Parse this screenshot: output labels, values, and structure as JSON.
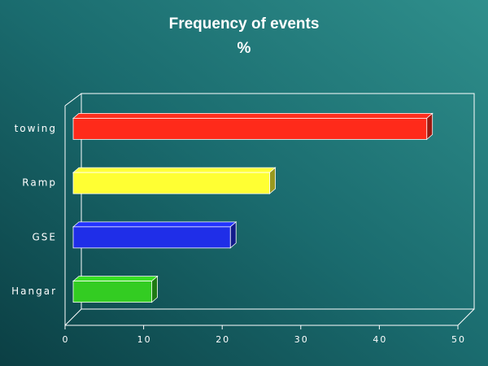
{
  "chart_data": {
    "type": "bar",
    "orientation": "horizontal",
    "title": "Frequency of events",
    "subtitle": "%",
    "categories": [
      "towing",
      "Ramp",
      "GSE",
      "Hangar"
    ],
    "values": [
      45,
      25,
      20,
      10
    ],
    "colors": [
      "#ff2a1a",
      "#ffff33",
      "#1f2ee8",
      "#33cc22"
    ],
    "xlim": [
      0,
      50
    ],
    "xticks": [
      0,
      10,
      20,
      30,
      40,
      50
    ]
  }
}
